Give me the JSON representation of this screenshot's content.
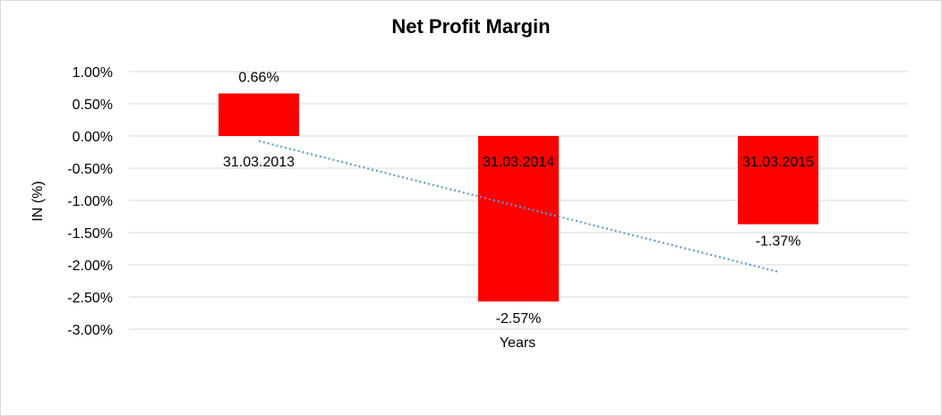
{
  "chart_data": {
    "type": "bar",
    "title": "Net Profit Margin",
    "xlabel": "Years",
    "ylabel": "IN (%)",
    "categories": [
      "31.03.2013",
      "31.03.2014",
      "31.03.2015"
    ],
    "values": [
      0.66,
      -2.57,
      -1.37
    ],
    "value_labels": [
      "0.66%",
      "-2.57%",
      "-1.37%"
    ],
    "ylim": [
      -3.0,
      1.0
    ],
    "yticks": [
      1.0,
      0.5,
      0.0,
      -0.5,
      -1.0,
      -1.5,
      -2.0,
      -2.5,
      -3.0
    ],
    "ytick_labels": [
      "1.00%",
      "0.50%",
      "0.00%",
      "-0.50%",
      "-1.00%",
      "-1.50%",
      "-2.00%",
      "-2.50%",
      "-3.00%"
    ],
    "grid": true,
    "trendline": "linear",
    "colors": {
      "bar": "#ff0000",
      "title": "#ff0000",
      "trendline": "#5b9bd5",
      "grid": "#d9d9d9"
    }
  }
}
